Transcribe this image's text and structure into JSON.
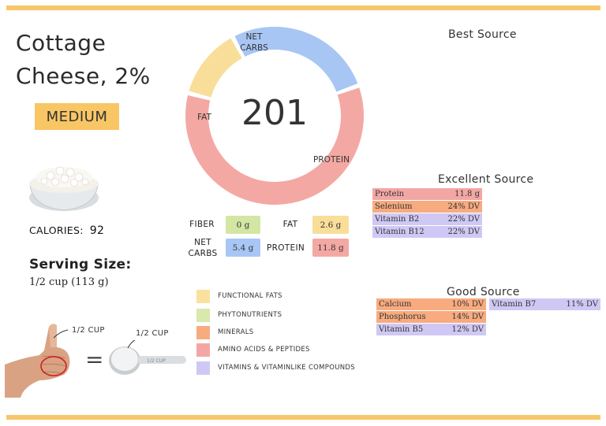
{
  "food": {
    "name_line1": "Cottage",
    "name_line2": "Cheese, 2%",
    "level": "MEDIUM",
    "calories_label": "CALORIES:",
    "calories_value": "92",
    "serving_heading": "Serving Size:",
    "serving_value": "1/2 cup (113 g)",
    "hand_label": "1/2 CUP",
    "cup_label": "1/2 CUP",
    "equals": "="
  },
  "chart_data": {
    "type": "pie",
    "style": "donut",
    "center_label": "201",
    "slices": [
      {
        "name": "NET CARBS",
        "value": 5.4,
        "color": "#a8c6f4"
      },
      {
        "name": "PROTEIN",
        "value": 11.8,
        "color": "#f4a8a3"
      },
      {
        "name": "FAT",
        "value": 2.6,
        "color": "#f9de9a"
      }
    ],
    "labels": {
      "net_carbs_line1": "NET",
      "net_carbs_line2": "CARBS",
      "protein": "PROTEIN",
      "fat": "FAT"
    }
  },
  "macros": {
    "fiber": {
      "label": "FIBER",
      "value": "0 g",
      "color": "#d3e6a4"
    },
    "fat": {
      "label": "FAT",
      "value": "2.6 g",
      "color": "#f9de9a"
    },
    "net_carbs": {
      "label_line1": "NET",
      "label_line2": "CARBS",
      "value": "5.4 g",
      "color": "#a8c6f4"
    },
    "protein": {
      "label": "PROTEIN",
      "value": "11.8 g",
      "color": "#f4a8a3"
    }
  },
  "legend": [
    {
      "label": "FUNCTIONAL FATS",
      "color": "#fbe19f"
    },
    {
      "label": "PHYTONUTRIENTS",
      "color": "#d9e8ad"
    },
    {
      "label": "MINERALS",
      "color": "#f7ab7f"
    },
    {
      "label": "AMINO ACIDS & PEPTIDES",
      "color": "#f3a7a5"
    },
    {
      "label": "VITAMINS & VITAMINLIKE COMPOUNDS",
      "color": "#d0c8f4"
    }
  ],
  "best_source": {
    "title": "Best Source"
  },
  "excellent_source": {
    "title": "Excellent Source",
    "items": [
      {
        "name": "Protein",
        "value": "11.8 g",
        "color": "#f3a7a5"
      },
      {
        "name": "Selenium",
        "value": "24% DV",
        "color": "#f7ab7f"
      },
      {
        "name": "Vitamin B2",
        "value": "22% DV",
        "color": "#d0c8f4"
      },
      {
        "name": "Vitamin B12",
        "value": "22% DV",
        "color": "#d0c8f4"
      }
    ]
  },
  "good_source": {
    "title": "Good Source",
    "items": [
      {
        "name": "Calcium",
        "value": "10% DV",
        "color": "#f7ab7f"
      },
      {
        "name": "Phosphorus",
        "value": "14% DV",
        "color": "#f7ab7f"
      },
      {
        "name": "Vitamin B5",
        "value": "12% DV",
        "color": "#d0c8f4"
      },
      {
        "name": "Vitamin B7",
        "value": "11% DV",
        "color": "#d0c8f4"
      }
    ]
  }
}
